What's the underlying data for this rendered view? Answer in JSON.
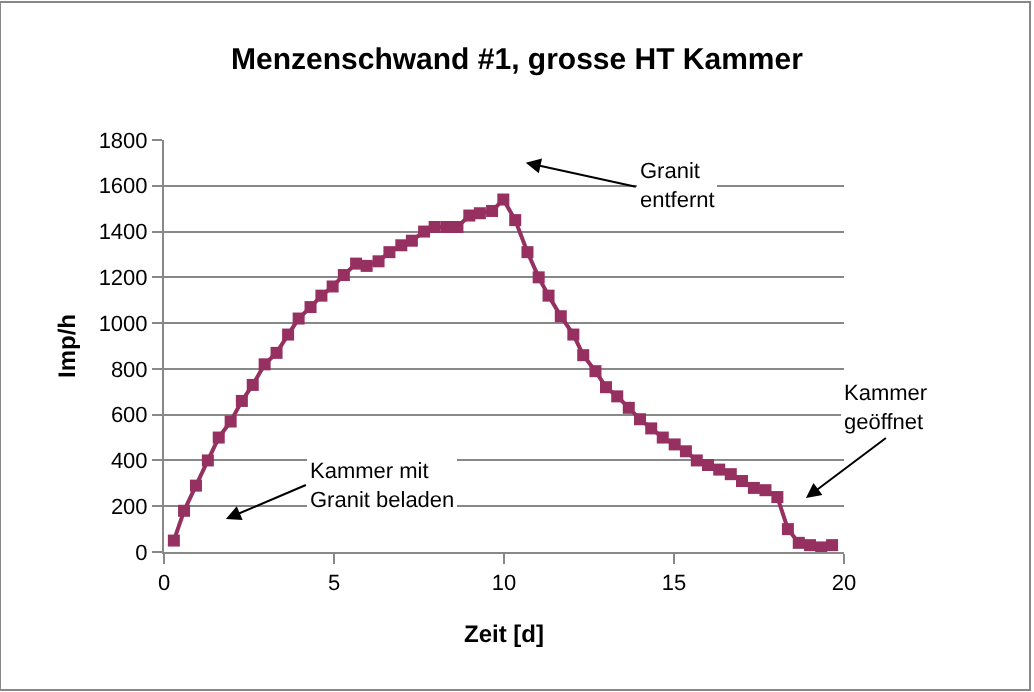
{
  "chart_data": {
    "type": "line",
    "title": "Menzenschwand #1, grosse HT Kammer",
    "xlabel": "Zeit [d]",
    "ylabel": "Imp/h",
    "x": [
      0.29,
      0.59,
      0.94,
      1.29,
      1.61,
      1.96,
      2.29,
      2.61,
      2.96,
      3.31,
      3.65,
      3.96,
      4.31,
      4.63,
      4.96,
      5.29,
      5.65,
      5.96,
      6.31,
      6.63,
      6.98,
      7.29,
      7.65,
      7.96,
      8.31,
      8.63,
      8.98,
      9.29,
      9.65,
      9.98,
      10.33,
      10.69,
      11.02,
      11.31,
      11.67,
      12.04,
      12.33,
      12.69,
      13.0,
      13.33,
      13.67,
      14.0,
      14.33,
      14.67,
      15.02,
      15.35,
      15.67,
      16.0,
      16.33,
      16.67,
      17.0,
      17.35,
      17.69,
      18.04,
      18.35,
      18.67,
      19.0,
      19.33,
      19.65
    ],
    "series": [
      {
        "color": "#953060",
        "values": [
          50,
          180,
          290,
          400,
          500,
          570,
          660,
          730,
          820,
          870,
          950,
          1020,
          1070,
          1120,
          1160,
          1210,
          1260,
          1250,
          1270,
          1310,
          1340,
          1360,
          1400,
          1420,
          1420,
          1420,
          1470,
          1480,
          1490,
          1540,
          1450,
          1310,
          1200,
          1120,
          1030,
          950,
          860,
          790,
          720,
          680,
          630,
          580,
          540,
          500,
          470,
          440,
          400,
          380,
          360,
          340,
          310,
          280,
          270,
          240,
          100,
          40,
          30,
          20,
          30
        ]
      }
    ],
    "xlim": [
      0,
      20
    ],
    "xticks": [
      0,
      5,
      10,
      15,
      20
    ],
    "ylim": [
      0,
      1800
    ],
    "yticks": [
      0,
      200,
      400,
      600,
      800,
      1000,
      1200,
      1400,
      1600,
      1800
    ],
    "grid": "y",
    "legend": false,
    "marker": "square",
    "line_style": "solid",
    "annotations": [
      "Granit\nentfernt",
      "Kammer mit\nGranit beladen",
      "Kammer\ngeöffnet"
    ]
  }
}
